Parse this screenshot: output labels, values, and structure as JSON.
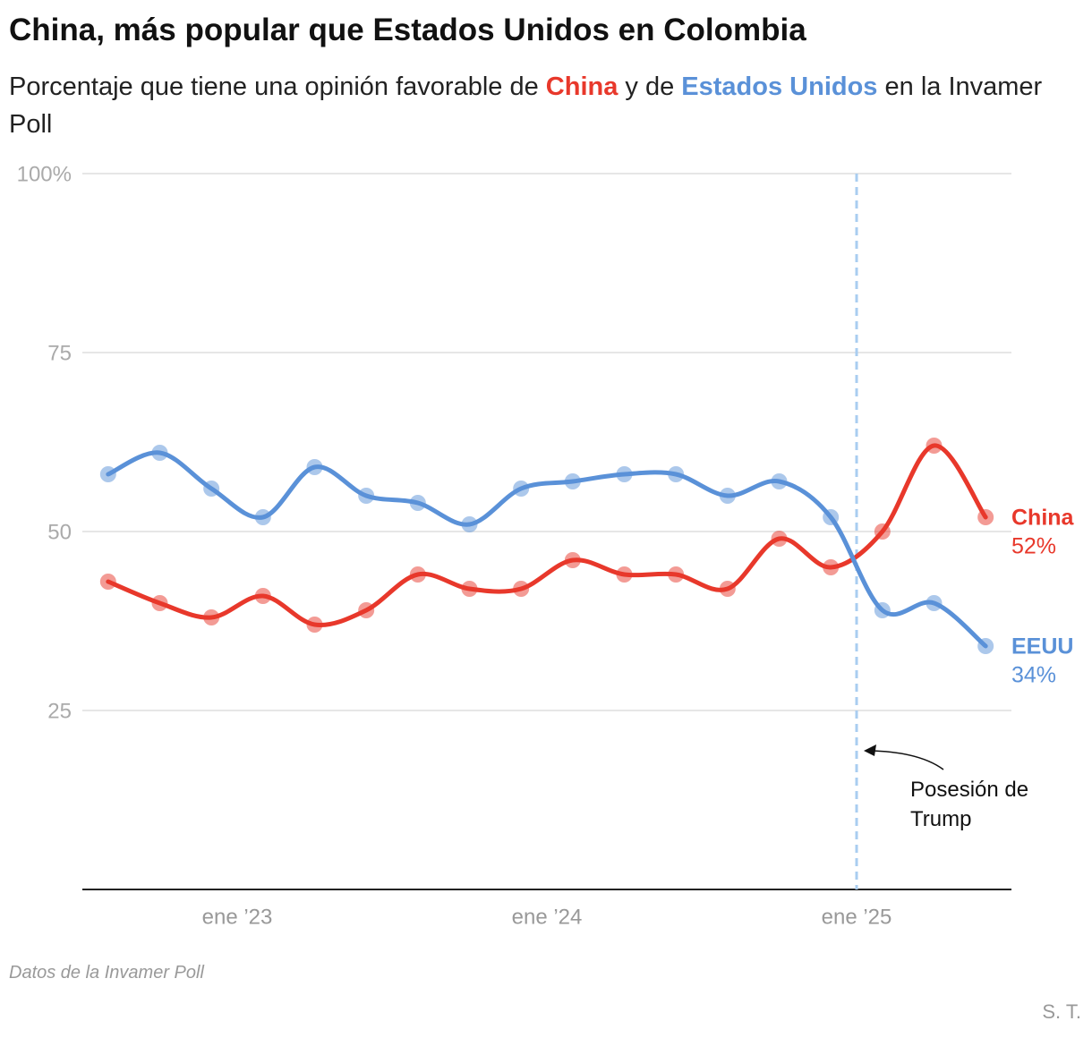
{
  "chart_data": {
    "type": "line",
    "title": "China, más popular que Estados Unidos en Colombia",
    "subtitle_parts": [
      {
        "text": "Porcentaje que tiene una opinión favorable de "
      },
      {
        "text": "China",
        "series": 0
      },
      {
        "text": " y de "
      },
      {
        "text": "Estados Unidos",
        "series": 1
      },
      {
        "text": " en la Invamer Poll"
      }
    ],
    "x": [
      "2022-08",
      "2022-10",
      "2022-12",
      "2023-02",
      "2023-04",
      "2023-06",
      "2023-08",
      "2023-10",
      "2023-12",
      "2024-02",
      "2024-04",
      "2024-06",
      "2024-08",
      "2024-10",
      "2024-12",
      "2025-02",
      "2025-04",
      "2025-06"
    ],
    "series": [
      {
        "name": "China",
        "color": "#e8382b",
        "values": [
          43,
          40,
          38,
          41,
          37,
          39,
          44,
          42,
          42,
          46,
          44,
          44,
          42,
          49,
          45,
          50,
          62,
          52
        ],
        "value_labels": [
          null,
          null,
          null,
          null,
          null,
          null,
          null,
          null,
          null,
          null,
          null,
          null,
          null,
          null,
          null,
          null,
          null,
          "52%"
        ]
      },
      {
        "name": "EEUU",
        "color": "#5a91d8",
        "values": [
          58,
          61,
          56,
          52,
          59,
          55,
          54,
          51,
          56,
          57,
          58,
          58,
          55,
          57,
          52,
          39,
          40,
          34
        ],
        "value_labels": [
          null,
          null,
          null,
          null,
          null,
          null,
          null,
          null,
          null,
          null,
          null,
          null,
          null,
          null,
          null,
          null,
          null,
          "34%"
        ]
      }
    ],
    "xlim": [
      "2022-07",
      "2025-07"
    ],
    "xticks": [
      {
        "value": "2023-01",
        "label": "ene ’23"
      },
      {
        "value": "2024-01",
        "label": "ene ’24"
      },
      {
        "value": "2025-01",
        "label": "ene ’25"
      }
    ],
    "ylim": [
      0,
      100
    ],
    "yticks": [
      25,
      50,
      75,
      {
        "value": 100,
        "label": "100%"
      }
    ],
    "grid": true,
    "annotation": {
      "x": "2025-01",
      "text": "Posesión de Trump"
    },
    "source": "Datos de la Invamer Poll",
    "credit": "S. T."
  }
}
